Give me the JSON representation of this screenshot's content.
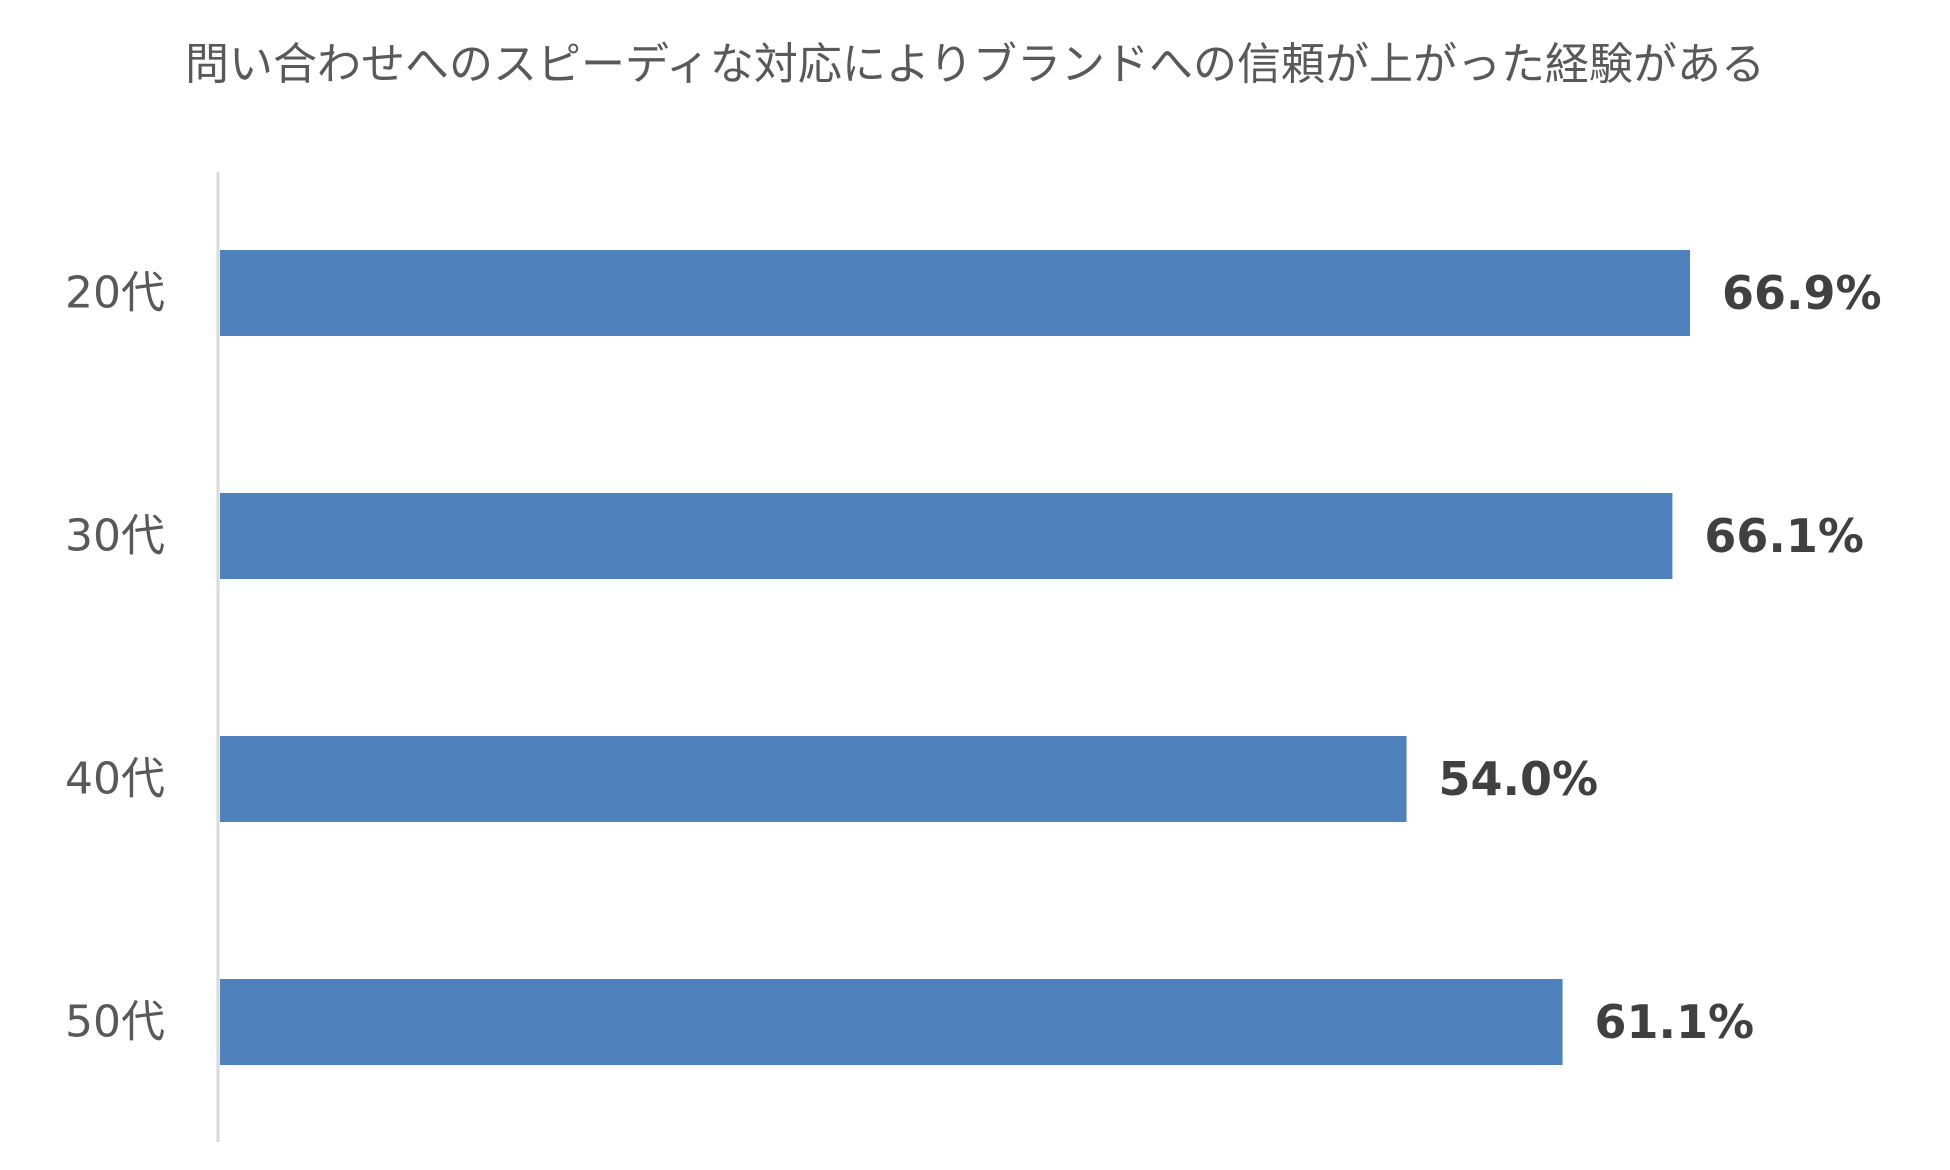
{
  "chart_data": {
    "type": "bar",
    "orientation": "horizontal",
    "title": "問い合わせへのスピーディな対応によりブランドへの信頼が上がった経験がある",
    "categories": [
      "20代",
      "30代",
      "40代",
      "50代"
    ],
    "values": [
      66.9,
      66.1,
      54.0,
      61.1
    ],
    "data_labels": [
      "66.9%",
      "66.1%",
      "54.0%",
      "61.1%"
    ],
    "unit": "%",
    "xlim": [
      0,
      100
    ],
    "grid": false,
    "legend": "none",
    "colors": {
      "bar": "#4f81bd",
      "axis": "#d9d9d9",
      "category_label": "#595959",
      "data_label": "#404040",
      "title": "#595959"
    }
  }
}
